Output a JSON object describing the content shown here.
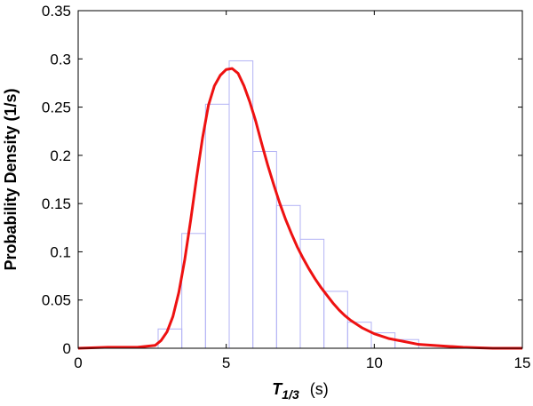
{
  "chart_data": {
    "type": "bar",
    "xlabel_main": "T",
    "xlabel_sub": "1/3",
    "xlabel_unit": "(s)",
    "ylabel": "Probability Density (1/s)",
    "xlim": [
      0,
      15
    ],
    "ylim": [
      0,
      0.35
    ],
    "xticks": [
      0,
      5,
      10,
      15
    ],
    "xtick_labels": [
      "0",
      "5",
      "10",
      "15"
    ],
    "yticks": [
      0,
      0.05,
      0.1,
      0.15,
      0.2,
      0.25,
      0.3,
      0.35
    ],
    "ytick_labels": [
      "0",
      "0.05",
      "0.1",
      "0.15",
      "0.2",
      "0.25",
      "0.3",
      "0.35"
    ],
    "grid": false,
    "histogram": {
      "color": "#b3b3f5",
      "bins": [
        {
          "x0": 2.7,
          "x1": 3.5,
          "value": 0.02
        },
        {
          "x0": 3.5,
          "x1": 4.3,
          "value": 0.119
        },
        {
          "x0": 4.3,
          "x1": 5.1,
          "value": 0.253
        },
        {
          "x0": 5.1,
          "x1": 5.9,
          "value": 0.298
        },
        {
          "x0": 5.9,
          "x1": 6.7,
          "value": 0.204
        },
        {
          "x0": 6.7,
          "x1": 7.5,
          "value": 0.148
        },
        {
          "x0": 7.5,
          "x1": 8.3,
          "value": 0.113
        },
        {
          "x0": 8.3,
          "x1": 9.1,
          "value": 0.059
        },
        {
          "x0": 9.1,
          "x1": 9.9,
          "value": 0.027
        },
        {
          "x0": 9.9,
          "x1": 10.7,
          "value": 0.016
        },
        {
          "x0": 10.7,
          "x1": 11.5,
          "value": 0.009
        }
      ]
    },
    "curve": {
      "color": "#ee1111",
      "x": [
        0,
        1.0,
        2.0,
        2.6,
        2.8,
        3.0,
        3.2,
        3.4,
        3.6,
        3.8,
        4.0,
        4.2,
        4.4,
        4.6,
        4.8,
        5.0,
        5.2,
        5.4,
        5.6,
        5.8,
        6.0,
        6.2,
        6.4,
        6.6,
        6.8,
        7.0,
        7.2,
        7.4,
        7.6,
        7.8,
        8.0,
        8.2,
        8.4,
        8.6,
        8.8,
        9.0,
        9.2,
        9.4,
        9.6,
        9.8,
        10.0,
        10.5,
        11.0,
        11.5,
        12.0,
        12.5,
        13.0,
        14.0,
        15.0
      ],
      "y": [
        0,
        0.001,
        0.001,
        0.003,
        0.008,
        0.017,
        0.033,
        0.058,
        0.092,
        0.133,
        0.177,
        0.218,
        0.252,
        0.272,
        0.283,
        0.289,
        0.29,
        0.285,
        0.272,
        0.255,
        0.235,
        0.212,
        0.19,
        0.17,
        0.151,
        0.134,
        0.119,
        0.105,
        0.093,
        0.082,
        0.072,
        0.063,
        0.055,
        0.047,
        0.04,
        0.034,
        0.029,
        0.025,
        0.021,
        0.018,
        0.015,
        0.01,
        0.007,
        0.004,
        0.003,
        0.002,
        0.001,
        0.0,
        0.0
      ]
    }
  }
}
